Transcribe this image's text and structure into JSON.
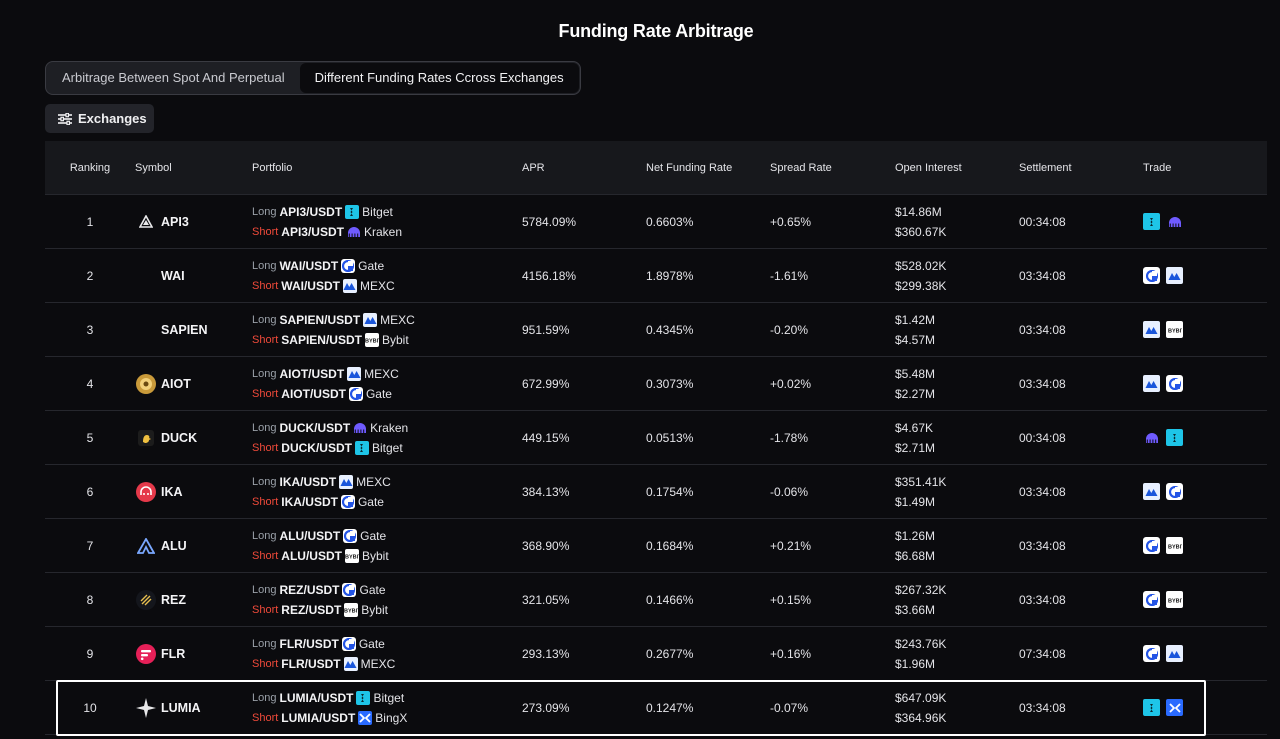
{
  "page": {
    "title": "Funding Rate Arbitrage"
  },
  "tabs": [
    {
      "label": "Arbitrage Between Spot And Perpetual",
      "active": false
    },
    {
      "label": "Different Funding Rates Ccross Exchanges",
      "active": true
    }
  ],
  "filter": {
    "label": "Exchanges",
    "icon": "sliders-icon"
  },
  "table": {
    "headers": [
      "Ranking",
      "Symbol",
      "Portfolio",
      "APR",
      "Net Funding Rate",
      "Spread Rate",
      "Open Interest",
      "Settlement",
      "Trade"
    ],
    "long_label": "Long",
    "short_label": "Short",
    "rows": [
      {
        "rank": "1",
        "symbol": "API3",
        "symbol_icon": "api3-icon",
        "long_pair": "API3/USDT",
        "long_ex": "Bitget",
        "short_pair": "API3/USDT",
        "short_ex": "Kraken",
        "apr": "5784.09%",
        "nfr": "0.6603%",
        "spread": "+0.65%",
        "oi_long": "$14.86M",
        "oi_short": "$360.67K",
        "settlement": "00:34:08"
      },
      {
        "rank": "2",
        "symbol": "WAI",
        "symbol_icon": "",
        "long_pair": "WAI/USDT",
        "long_ex": "Gate",
        "short_pair": "WAI/USDT",
        "short_ex": "MEXC",
        "apr": "4156.18%",
        "nfr": "1.8978%",
        "spread": "-1.61%",
        "oi_long": "$528.02K",
        "oi_short": "$299.38K",
        "settlement": "03:34:08"
      },
      {
        "rank": "3",
        "symbol": "SAPIEN",
        "symbol_icon": "",
        "long_pair": "SAPIEN/USDT",
        "long_ex": "MEXC",
        "short_pair": "SAPIEN/USDT",
        "short_ex": "Bybit",
        "apr": "951.59%",
        "nfr": "0.4345%",
        "spread": "-0.20%",
        "oi_long": "$1.42M",
        "oi_short": "$4.57M",
        "settlement": "03:34:08"
      },
      {
        "rank": "4",
        "symbol": "AIOT",
        "symbol_icon": "aiot-icon",
        "long_pair": "AIOT/USDT",
        "long_ex": "MEXC",
        "short_pair": "AIOT/USDT",
        "short_ex": "Gate",
        "apr": "672.99%",
        "nfr": "0.3073%",
        "spread": "+0.02%",
        "oi_long": "$5.48M",
        "oi_short": "$2.27M",
        "settlement": "03:34:08"
      },
      {
        "rank": "5",
        "symbol": "DUCK",
        "symbol_icon": "duck-icon",
        "long_pair": "DUCK/USDT",
        "long_ex": "Kraken",
        "short_pair": "DUCK/USDT",
        "short_ex": "Bitget",
        "apr": "449.15%",
        "nfr": "0.0513%",
        "spread": "-1.78%",
        "oi_long": "$4.67K",
        "oi_short": "$2.71M",
        "settlement": "00:34:08"
      },
      {
        "rank": "6",
        "symbol": "IKA",
        "symbol_icon": "ika-icon",
        "long_pair": "IKA/USDT",
        "long_ex": "MEXC",
        "short_pair": "IKA/USDT",
        "short_ex": "Gate",
        "apr": "384.13%",
        "nfr": "0.1754%",
        "spread": "-0.06%",
        "oi_long": "$351.41K",
        "oi_short": "$1.49M",
        "settlement": "03:34:08"
      },
      {
        "rank": "7",
        "symbol": "ALU",
        "symbol_icon": "alu-icon",
        "long_pair": "ALU/USDT",
        "long_ex": "Gate",
        "short_pair": "ALU/USDT",
        "short_ex": "Bybit",
        "apr": "368.90%",
        "nfr": "0.1684%",
        "spread": "+0.21%",
        "oi_long": "$1.26M",
        "oi_short": "$6.68M",
        "settlement": "03:34:08"
      },
      {
        "rank": "8",
        "symbol": "REZ",
        "symbol_icon": "rez-icon",
        "long_pair": "REZ/USDT",
        "long_ex": "Gate",
        "short_pair": "REZ/USDT",
        "short_ex": "Bybit",
        "apr": "321.05%",
        "nfr": "0.1466%",
        "spread": "+0.15%",
        "oi_long": "$267.32K",
        "oi_short": "$3.66M",
        "settlement": "03:34:08"
      },
      {
        "rank": "9",
        "symbol": "FLR",
        "symbol_icon": "flr-icon",
        "long_pair": "FLR/USDT",
        "long_ex": "Gate",
        "short_pair": "FLR/USDT",
        "short_ex": "MEXC",
        "apr": "293.13%",
        "nfr": "0.2677%",
        "spread": "+0.16%",
        "oi_long": "$243.76K",
        "oi_short": "$1.96M",
        "settlement": "07:34:08"
      },
      {
        "rank": "10",
        "symbol": "LUMIA",
        "symbol_icon": "lumia-icon",
        "long_pair": "LUMIA/USDT",
        "long_ex": "Bitget",
        "short_pair": "LUMIA/USDT",
        "short_ex": "BingX",
        "apr": "273.09%",
        "nfr": "0.1247%",
        "spread": "-0.07%",
        "oi_long": "$647.09K",
        "oi_short": "$364.96K",
        "settlement": "03:34:08"
      }
    ]
  },
  "colors": {
    "background": "#0b0b0e",
    "short": "#ef4a3a",
    "header_bg": "#17181c",
    "highlight_border": "#ffffff"
  }
}
